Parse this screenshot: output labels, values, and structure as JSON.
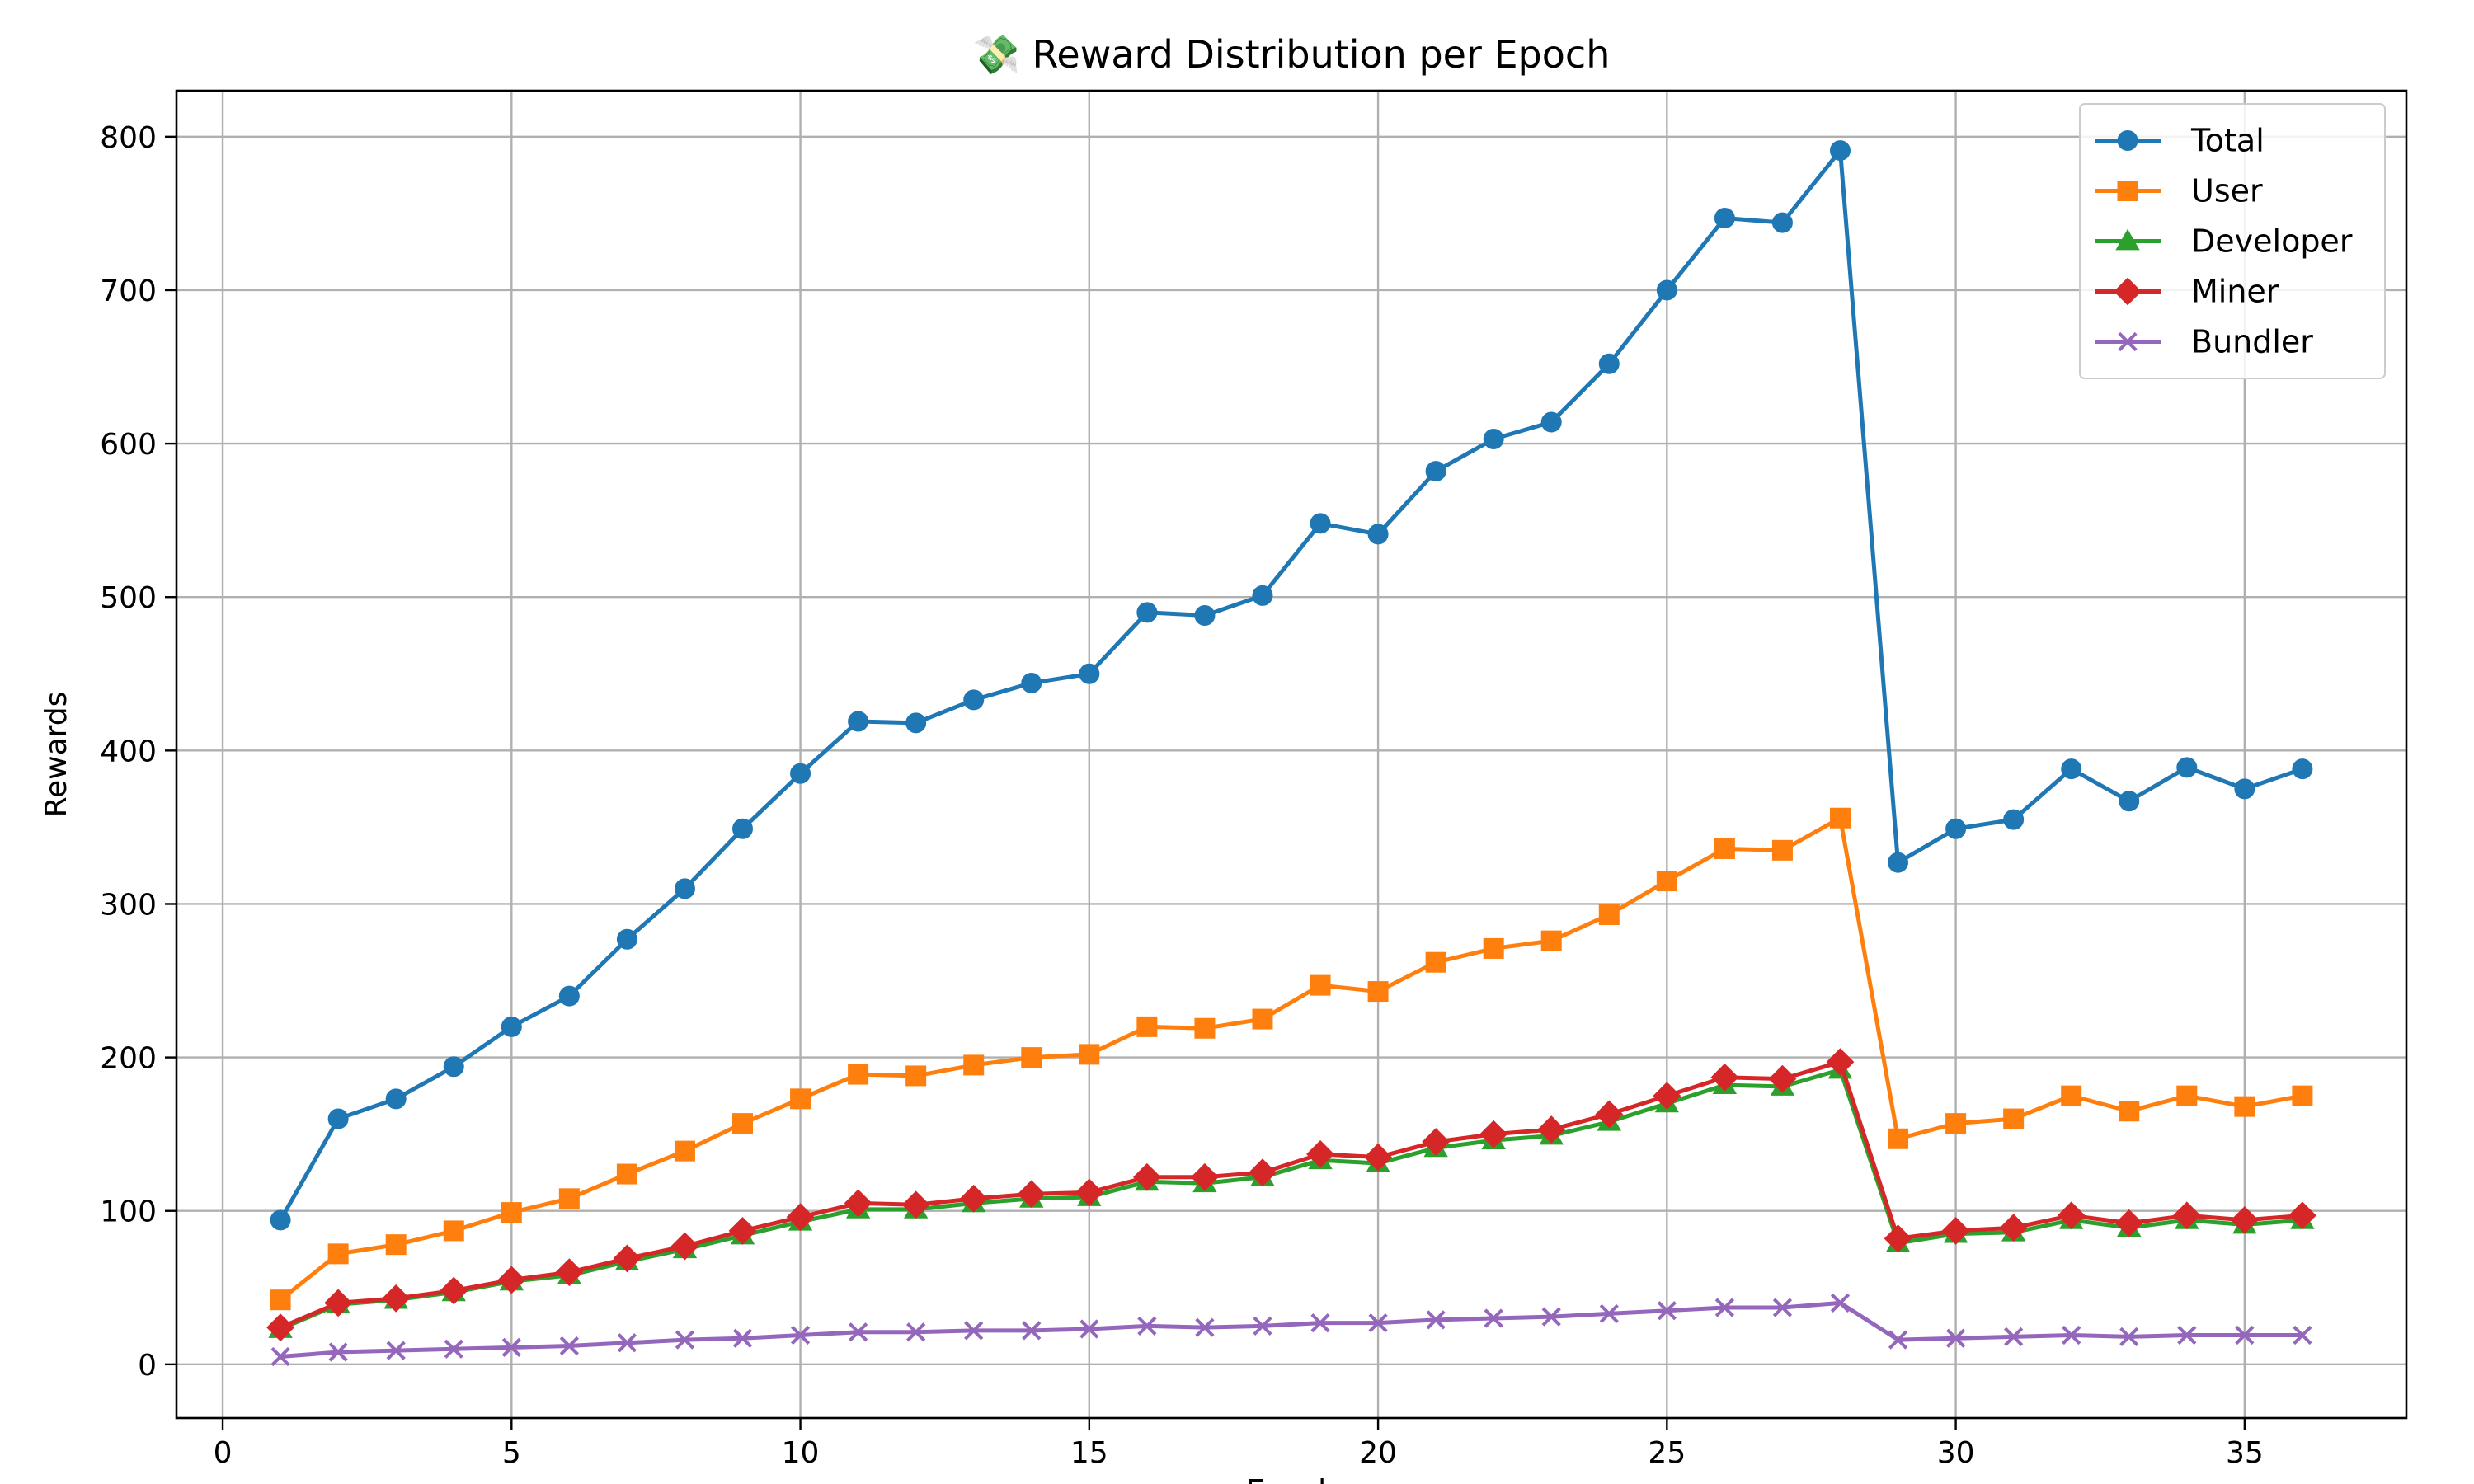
{
  "chart_data": {
    "type": "line",
    "title": "💸 Reward Distribution per Epoch",
    "xlabel": "Epoch",
    "ylabel": "Rewards",
    "xlim": [
      -0.8,
      37.8
    ],
    "ylim": [
      -35,
      830
    ],
    "x_ticks": [
      0,
      5,
      10,
      15,
      20,
      25,
      30,
      35
    ],
    "y_ticks": [
      0,
      100,
      200,
      300,
      400,
      500,
      600,
      700,
      800
    ],
    "grid": true,
    "legend_position": "top-right",
    "x": [
      1,
      2,
      3,
      4,
      5,
      6,
      7,
      8,
      9,
      10,
      11,
      12,
      13,
      14,
      15,
      16,
      17,
      18,
      19,
      20,
      21,
      22,
      23,
      24,
      25,
      26,
      27,
      28,
      29,
      30,
      31,
      32,
      33,
      34,
      35,
      36
    ],
    "series": [
      {
        "name": "Total",
        "color": "#1f77b4",
        "marker": "circle",
        "values": [
          94,
          160,
          173,
          194,
          220,
          240,
          277,
          310,
          349,
          385,
          419,
          418,
          433,
          444,
          450,
          490,
          488,
          501,
          548,
          541,
          582,
          603,
          614,
          652,
          700,
          747,
          744,
          791,
          327,
          349,
          355,
          388,
          367,
          389,
          375,
          388
        ]
      },
      {
        "name": "User",
        "color": "#ff7f0e",
        "marker": "square",
        "values": [
          42,
          72,
          78,
          87,
          99,
          108,
          124,
          139,
          157,
          173,
          189,
          188,
          195,
          200,
          202,
          220,
          219,
          225,
          247,
          243,
          262,
          271,
          276,
          293,
          315,
          336,
          335,
          356,
          147,
          157,
          160,
          175,
          165,
          175,
          168,
          175
        ]
      },
      {
        "name": "Developer",
        "color": "#2ca02c",
        "marker": "triangle",
        "values": [
          23,
          39,
          42,
          47,
          54,
          58,
          67,
          75,
          84,
          93,
          101,
          101,
          105,
          108,
          109,
          119,
          118,
          122,
          133,
          131,
          141,
          146,
          149,
          158,
          170,
          182,
          181,
          192,
          79,
          85,
          86,
          94,
          89,
          94,
          91,
          94
        ]
      },
      {
        "name": "Miner",
        "color": "#d62728",
        "marker": "diamond",
        "values": [
          24,
          40,
          43,
          48,
          55,
          60,
          69,
          77,
          87,
          96,
          105,
          104,
          108,
          111,
          112,
          122,
          122,
          125,
          137,
          135,
          145,
          150,
          153,
          163,
          175,
          187,
          186,
          197,
          82,
          87,
          89,
          97,
          92,
          97,
          94,
          97
        ]
      },
      {
        "name": "Bundler",
        "color": "#9467bd",
        "marker": "x",
        "values": [
          5,
          8,
          9,
          10,
          11,
          12,
          14,
          16,
          17,
          19,
          21,
          21,
          22,
          22,
          23,
          25,
          24,
          25,
          27,
          27,
          29,
          30,
          31,
          33,
          35,
          37,
          37,
          40,
          16,
          17,
          18,
          19,
          18,
          19,
          19,
          19
        ]
      }
    ]
  }
}
